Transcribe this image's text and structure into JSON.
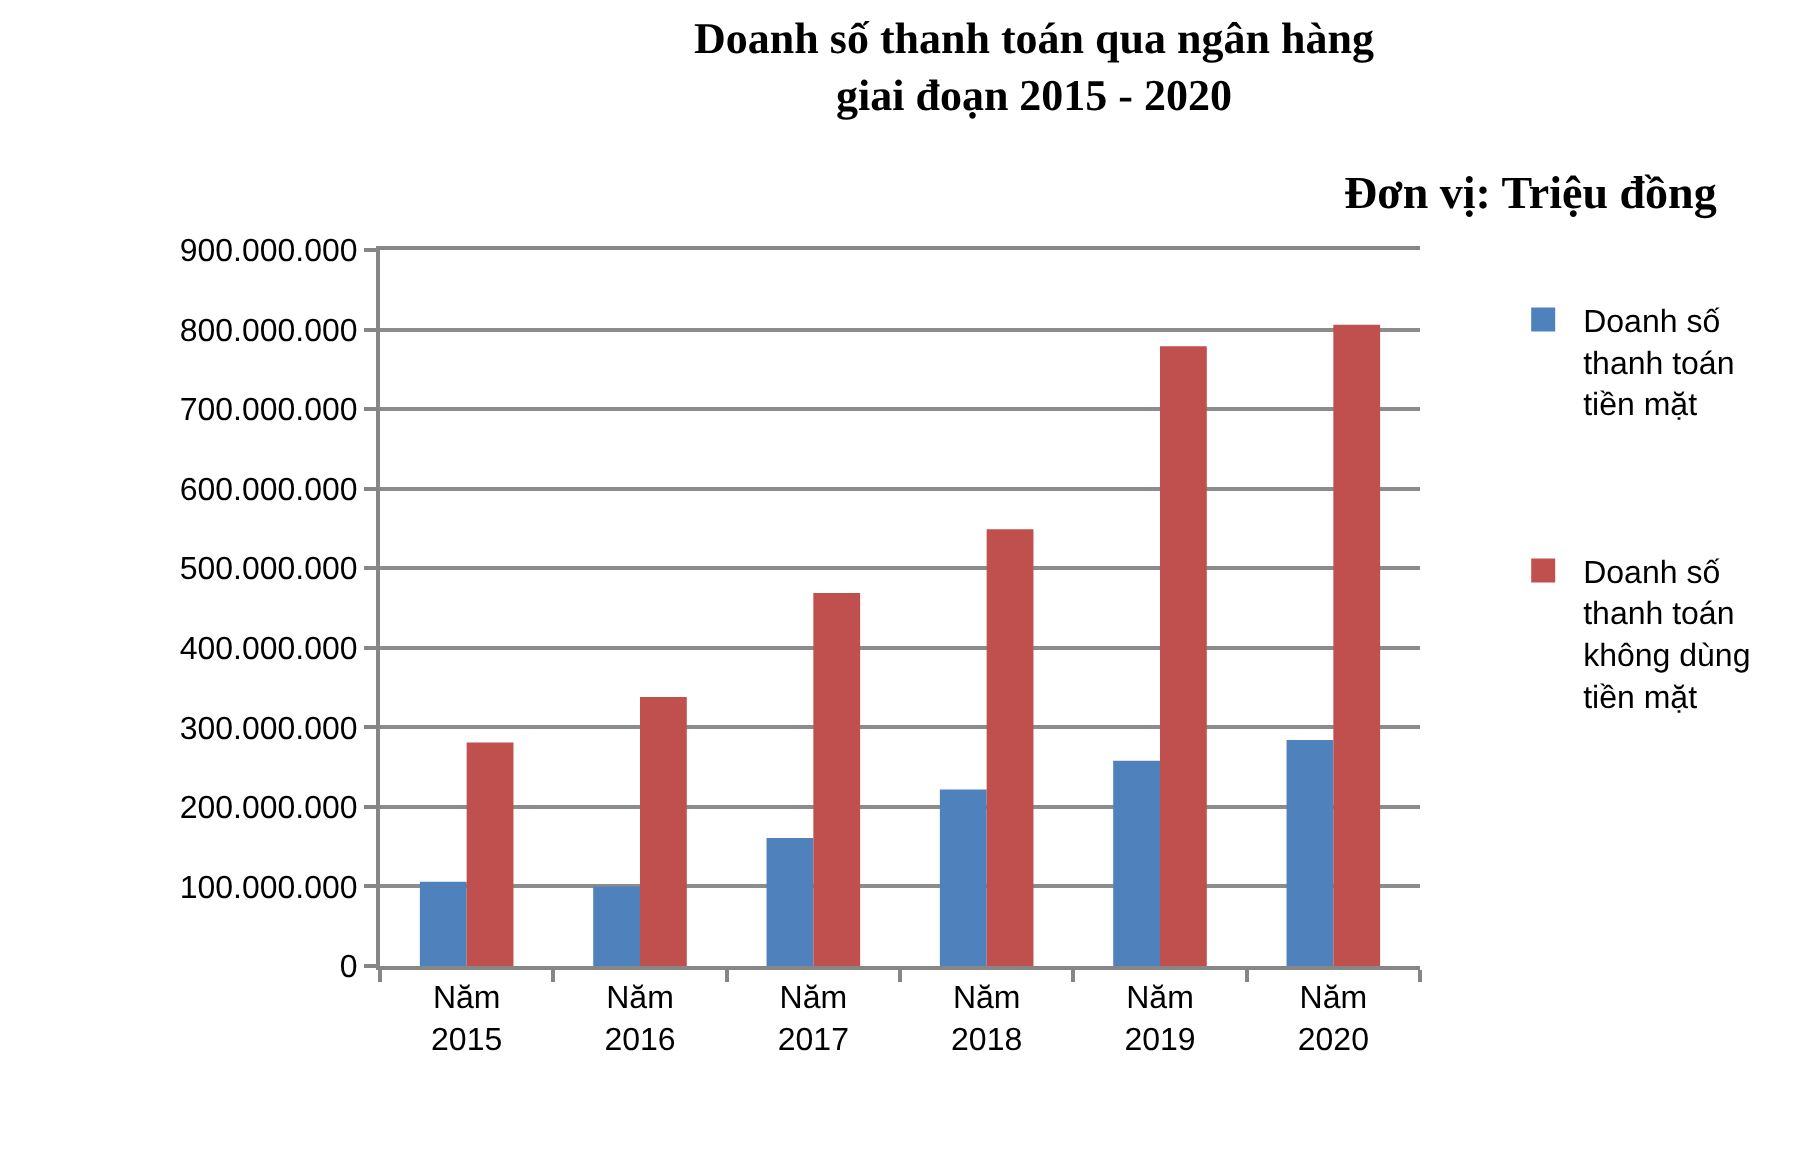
{
  "chart_data": {
    "type": "bar",
    "title": "Doanh số thanh toán qua ngân hàng giai đoạn 2015 - 2020",
    "subtitle": "Đơn vị: Triệu đồng",
    "categories": [
      "Năm 2015",
      "Năm 2016",
      "Năm 2017",
      "Năm 2018",
      "Năm 2019",
      "Năm 2020"
    ],
    "series": [
      {
        "name": "Doanh số thanh toán tiền mặt",
        "color": "#4f81bd",
        "values": [
          106000000,
          100000000,
          161000000,
          222000000,
          258000000,
          284000000
        ]
      },
      {
        "name": "Doanh số thanh toán không dùng tiền mặt",
        "color": "#c0504d",
        "values": [
          281000000,
          338000000,
          469000000,
          549000000,
          779000000,
          806000000
        ]
      }
    ],
    "ylim": [
      0,
      900000000
    ],
    "yticks": [
      {
        "value": 0,
        "label": "0"
      },
      {
        "value": 100000000,
        "label": "100.000.000"
      },
      {
        "value": 200000000,
        "label": "200.000.000"
      },
      {
        "value": 300000000,
        "label": "300.000.000"
      },
      {
        "value": 400000000,
        "label": "400.000.000"
      },
      {
        "value": 500000000,
        "label": "500.000.000"
      },
      {
        "value": 600000000,
        "label": "600.000.000"
      },
      {
        "value": 700000000,
        "label": "700.000.000"
      },
      {
        "value": 800000000,
        "label": "800.000.000"
      },
      {
        "value": 900000000,
        "label": "900.000.000"
      }
    ],
    "grid": "y",
    "legend": "right"
  }
}
